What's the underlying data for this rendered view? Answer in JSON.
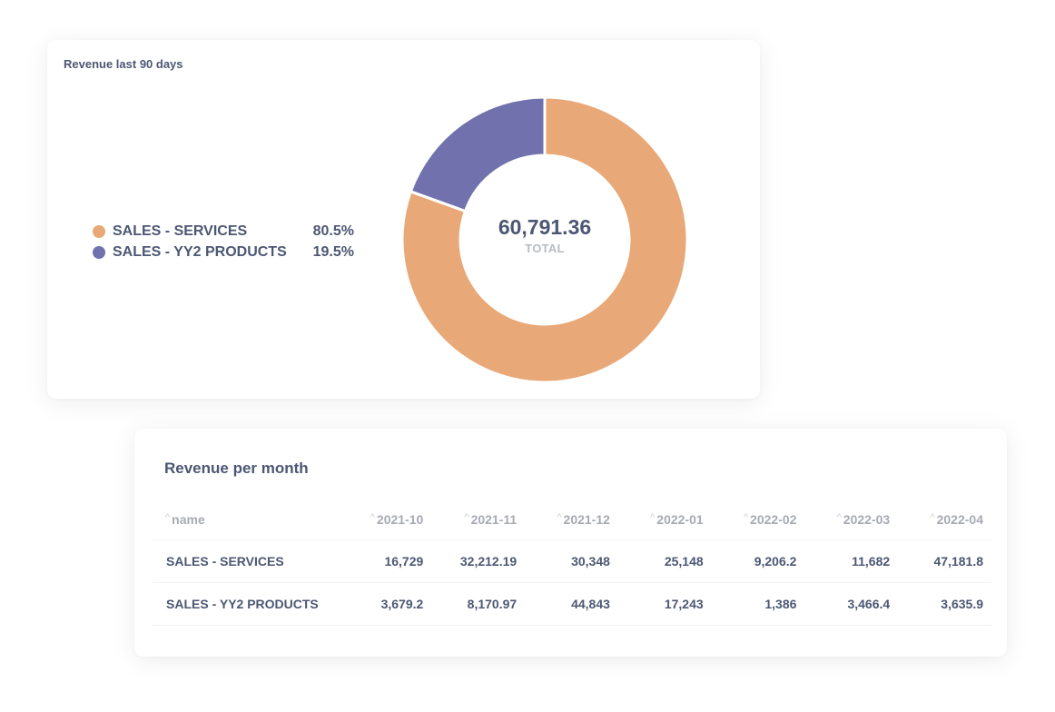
{
  "donut_card": {
    "title": "Revenue last 90 days",
    "legend": [
      {
        "label": "SALES - SERVICES",
        "percent": "80.5%",
        "color": "#E8A877"
      },
      {
        "label": "SALES - YY2 PRODUCTS",
        "percent": "19.5%",
        "color": "#7172AD"
      }
    ],
    "total_value": "60,791.36",
    "total_label": "TOTAL"
  },
  "table_card": {
    "title": "Revenue per month",
    "sort_icon": "^",
    "columns": [
      "name",
      "2021-10",
      "2021-11",
      "2021-12",
      "2022-01",
      "2022-02",
      "2022-03",
      "2022-04"
    ],
    "rows": [
      [
        "SALES - SERVICES",
        "16,729",
        "32,212.19",
        "30,348",
        "25,148",
        "9,206.2",
        "11,682",
        "47,181.8"
      ],
      [
        "SALES - YY2 PRODUCTS",
        "3,679.2",
        "8,170.97",
        "44,843",
        "17,243",
        "1,386",
        "3,466.4",
        "3,635.9"
      ]
    ]
  },
  "chart_data": [
    {
      "type": "pie",
      "title": "Revenue last 90 days",
      "categories": [
        "SALES - SERVICES",
        "SALES - YY2 PRODUCTS"
      ],
      "values": [
        80.5,
        19.5
      ],
      "unit": "%",
      "colors": [
        "#E8A877",
        "#7172AD"
      ],
      "center_label": "60,791.36",
      "center_sublabel": "TOTAL",
      "legend_position": "left"
    },
    {
      "type": "table",
      "title": "Revenue per month",
      "columns": [
        "name",
        "2021-10",
        "2021-11",
        "2021-12",
        "2022-01",
        "2022-02",
        "2022-03",
        "2022-04"
      ],
      "series": [
        {
          "name": "SALES - SERVICES",
          "values": [
            16729,
            32212.19,
            30348,
            25148,
            9206.2,
            11682,
            47181.8
          ]
        },
        {
          "name": "SALES - YY2 PRODUCTS",
          "values": [
            3679.2,
            8170.97,
            44843,
            17243,
            1386,
            3466.4,
            3635.9
          ]
        }
      ]
    }
  ]
}
